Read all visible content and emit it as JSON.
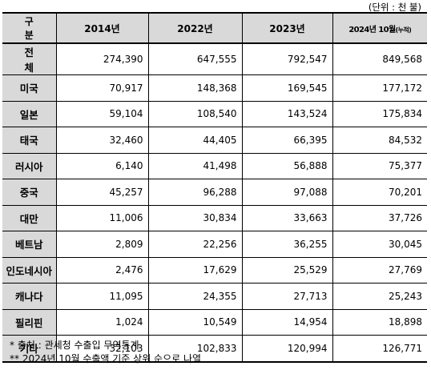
{
  "unit_note": "(단위 : 천 불)",
  "header": {
    "col0": "구 분",
    "col1": "2014년",
    "col2": "2022년",
    "col3": "2023년",
    "col4_main": "2024년 10월",
    "col4_sub": "(누적)"
  },
  "rows": [
    {
      "label": "전 체",
      "v2014": "274,390",
      "v2022": "647,555",
      "v2023": "792,547",
      "v2024": "849,568"
    },
    {
      "label": "미국",
      "v2014": "70,917",
      "v2022": "148,368",
      "v2023": "169,545",
      "v2024": "177,172"
    },
    {
      "label": "일본",
      "v2014": "59,104",
      "v2022": "108,540",
      "v2023": "143,524",
      "v2024": "175,834"
    },
    {
      "label": "태국",
      "v2014": "32,460",
      "v2022": "44,405",
      "v2023": "66,395",
      "v2024": "84,532"
    },
    {
      "label": "러시아",
      "v2014": "6,140",
      "v2022": "41,498",
      "v2023": "56,888",
      "v2024": "75,377"
    },
    {
      "label": "중국",
      "v2014": "45,257",
      "v2022": "96,288",
      "v2023": "97,088",
      "v2024": "70,201"
    },
    {
      "label": "대만",
      "v2014": "11,006",
      "v2022": "30,834",
      "v2023": "33,663",
      "v2024": "37,726"
    },
    {
      "label": "베트남",
      "v2014": "2,809",
      "v2022": "22,256",
      "v2023": "36,255",
      "v2024": "30,045"
    },
    {
      "label": "인도네시아",
      "v2014": "2,476",
      "v2022": "17,629",
      "v2023": "25,529",
      "v2024": "27,769"
    },
    {
      "label": "캐나다",
      "v2014": "11,095",
      "v2022": "24,355",
      "v2023": "27,713",
      "v2024": "25,243"
    },
    {
      "label": "필리핀",
      "v2014": "1,024",
      "v2022": "10,549",
      "v2023": "14,954",
      "v2024": "18,898"
    },
    {
      "label": "기타",
      "v2014": "32,103",
      "v2022": "102,833",
      "v2023": "120,994",
      "v2024": "126,771"
    }
  ],
  "notes": [
    "* 출처 : 관세청 수출입 무역통계",
    "** 2024년 10월 수출액 기준 상위 순으로 나열"
  ]
}
